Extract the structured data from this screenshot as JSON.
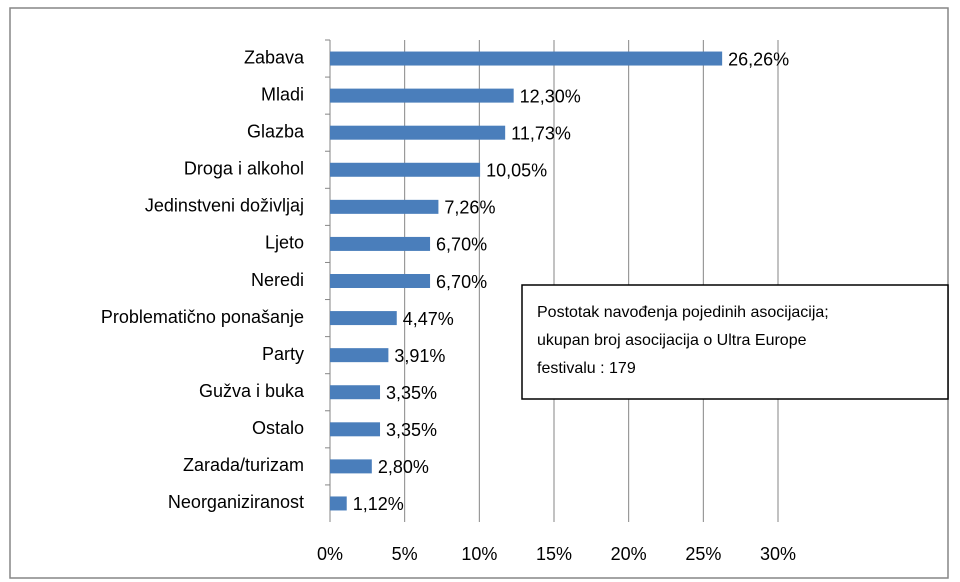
{
  "chart_data": {
    "type": "hbar",
    "categories": [
      "Zabava",
      "Mladi",
      "Glazba",
      "Droga i alkohol",
      "Jedinstveni doživljaj",
      "Ljeto",
      "Neredi",
      "Problematično ponašanje",
      "Party",
      "Gužva i buka",
      "Ostalo",
      "Zarada/turizam",
      "Neorganiziranost"
    ],
    "values": [
      26.26,
      12.3,
      11.73,
      10.05,
      7.26,
      6.7,
      6.7,
      4.47,
      3.91,
      3.35,
      3.35,
      2.8,
      1.12
    ],
    "value_labels": [
      "26,26%",
      "12,30%",
      "11,73%",
      "10,05%",
      "7,26%",
      "6,70%",
      "6,70%",
      "4,47%",
      "3,91%",
      "3,35%",
      "3,35%",
      "2,80%",
      "1,12%"
    ],
    "color": "#4a7ebb",
    "xlim": [
      0,
      30
    ],
    "xticks": [
      {
        "value": 0,
        "label": "0%"
      },
      {
        "value": 5,
        "label": "5%"
      },
      {
        "value": 10,
        "label": "10%"
      },
      {
        "value": 15,
        "label": "15%"
      },
      {
        "value": 20,
        "label": "20%"
      },
      {
        "value": 25,
        "label": "25%"
      },
      {
        "value": 30,
        "label": "30%"
      }
    ],
    "grid": true,
    "annotation": [
      "Postotak navođenja pojedinih asocijacija;",
      "ukupan broj asocijacija o Ultra Europe",
      "festivalu : 179"
    ]
  }
}
